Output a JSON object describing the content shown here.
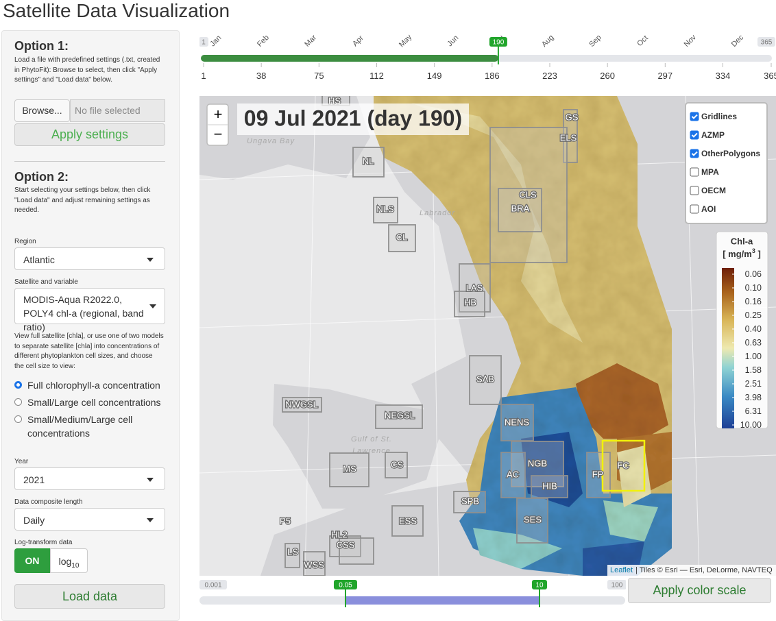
{
  "header": {
    "title": "Satellite Data Visualization"
  },
  "sidebar": {
    "option1": {
      "heading": "Option 1:",
      "description": "Load a file with predefined settings (.txt, created in PhytoFit): Browse to select, then click \"Apply settings\" and \"Load data\" below.",
      "browse": "Browse...",
      "file_placeholder": "No file selected",
      "apply": "Apply settings"
    },
    "option2": {
      "heading": "Option 2:",
      "description": "Start selecting your settings below, then click \"Load data\" and adjust remaining settings as needed."
    },
    "region": {
      "label": "Region",
      "value": "Atlantic"
    },
    "satellite": {
      "label": "Satellite and variable",
      "value": "MODIS-Aqua R2022.0, POLY4 chl-a (regional, band ratio)"
    },
    "view": {
      "description": "View full satellite [chla], or use one of two models to separate satellite [chla] into concentrations of different phytoplankton cell sizes, and choose the cell size to view:",
      "options": [
        "Full chlorophyll-a concentration",
        "Small/Large cell concentrations",
        "Small/Medium/Large cell concentrations"
      ],
      "selected": 0
    },
    "year": {
      "label": "Year",
      "value": "2021"
    },
    "composite": {
      "label": "Data composite length",
      "value": "Daily"
    },
    "log": {
      "label": "Log-transform data",
      "on": "ON",
      "off": "log",
      "off_sub": "10"
    },
    "load": "Load data"
  },
  "timeline": {
    "months": [
      "Jan",
      "Feb",
      "Mar",
      "Apr",
      "May",
      "Jun",
      "Jul",
      "Aug",
      "Sep",
      "Oct",
      "Nov",
      "Dec"
    ],
    "min": 1,
    "max": 365,
    "value": 190,
    "ticks": [
      1,
      38,
      75,
      112,
      149,
      186,
      223,
      260,
      297,
      334,
      365
    ]
  },
  "map": {
    "date_label": "09 Jul 2021 (day 190)",
    "zoom_in": "+",
    "zoom_out": "−",
    "place_names": [
      "Ungava Bay",
      "Labrador",
      "Gulf of St.",
      "Lawrence"
    ],
    "layers": [
      {
        "label": "Gridlines",
        "checked": true
      },
      {
        "label": "AZMP",
        "checked": true
      },
      {
        "label": "OtherPolygons",
        "checked": true
      },
      {
        "label": "MPA",
        "checked": false
      },
      {
        "label": "OECM",
        "checked": false
      },
      {
        "label": "AOI",
        "checked": false
      }
    ],
    "regions": [
      "HS",
      "GS",
      "ELS",
      "NL",
      "CLS",
      "BRA",
      "NLS",
      "CL",
      "LAS",
      "HB",
      "SAB",
      "NWGSL",
      "NEGSL",
      "NENS",
      "NGB",
      "AC",
      "HIB",
      "FP",
      "FC",
      "MS",
      "CS",
      "SPB",
      "SES",
      "ESS",
      "P5",
      "HL2",
      "CSS",
      "LS",
      "WSS"
    ],
    "legend": {
      "title": "Chl-a",
      "unit_prefix": "[ mg/m",
      "unit_sup": "3",
      "unit_suffix": " ]",
      "labels": [
        "0.06",
        "0.10",
        "0.16",
        "0.25",
        "0.40",
        "0.63",
        "1.00",
        "1.58",
        "2.51",
        "3.98",
        "6.31",
        "10.00"
      ]
    },
    "attribution_link": "Leaflet",
    "attribution": "| Tiles © Esri — Esri, DeLorme, NAVTEQ"
  },
  "color_scale": {
    "min": 0.001,
    "max": 100,
    "from": 0.05,
    "to": 10,
    "apply": "Apply color scale"
  }
}
